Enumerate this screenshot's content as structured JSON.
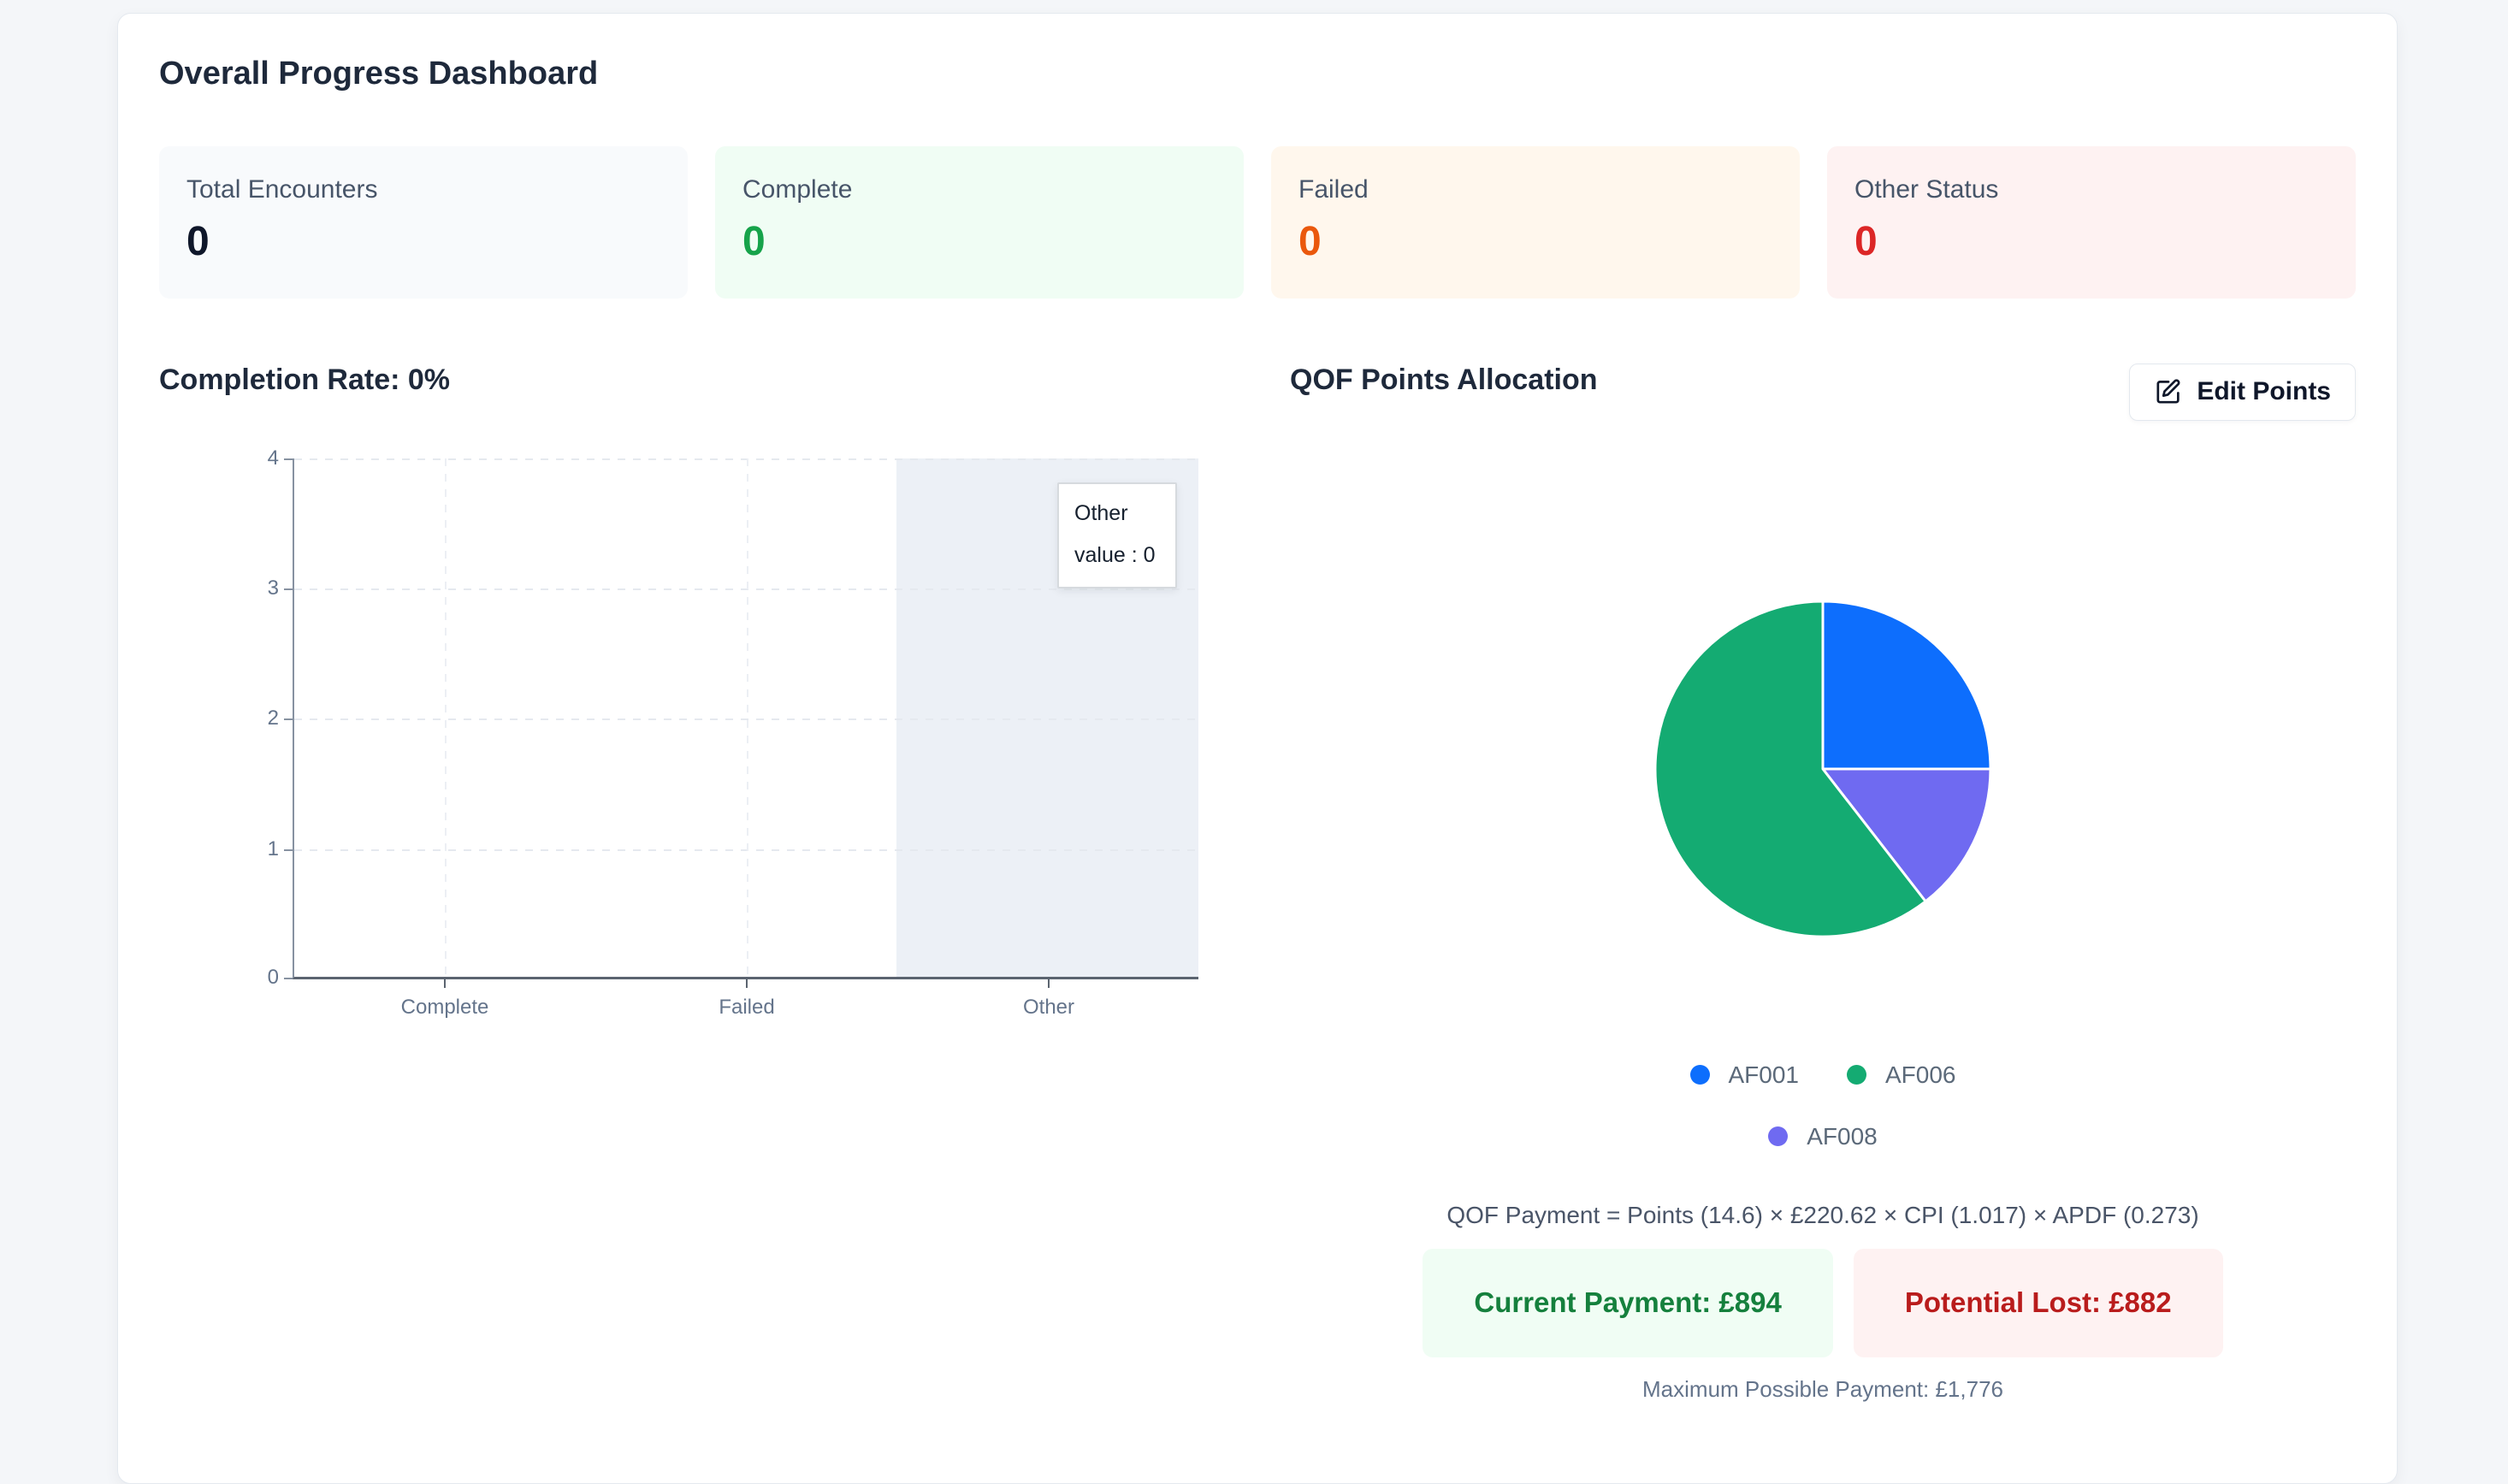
{
  "page": {
    "title": "Overall Progress Dashboard"
  },
  "colors": {
    "page_bg": "#f4f6f9",
    "complete_green": "#16a34a",
    "failed_orange": "#ea580c",
    "other_red": "#dc2626",
    "pie_blue": "#0d6efd",
    "pie_green": "#14ab72",
    "pie_purple": "#6f6af1",
    "payment_green_text": "#15803d",
    "payment_red_text": "#b91c1c"
  },
  "stats": [
    {
      "label": "Total Encounters",
      "value": "0"
    },
    {
      "label": "Complete",
      "value": "0"
    },
    {
      "label": "Failed",
      "value": "0"
    },
    {
      "label": "Other Status",
      "value": "0"
    }
  ],
  "qof": {
    "edit_button": "Edit Points",
    "edit_button_icon": "pencil-square",
    "formula": "QOF Payment = Points (14.6) × £220.62 × CPI (1.017) × APDF (0.273)",
    "current_payment": "Current Payment: £894",
    "potential_lost": "Potential Lost: £882",
    "max_payment": "Maximum Possible Payment: £1,776"
  },
  "chart_data": [
    {
      "type": "bar",
      "title": "Completion Rate: 0%",
      "categories": [
        "Complete",
        "Failed",
        "Other"
      ],
      "values": [
        0,
        0,
        0
      ],
      "xlabel": "",
      "ylabel": "",
      "ylim": [
        0,
        4
      ],
      "y_ticks": [
        0,
        1,
        2,
        3,
        4
      ],
      "grid": true,
      "highlighted_category": "Other",
      "tooltip": {
        "header": "Other",
        "body": "value : 0"
      }
    },
    {
      "type": "pie",
      "title": "QOF Points Allocation",
      "slices_draw_order": [
        {
          "label": "AF001",
          "pct": 25.0,
          "color": "#0d6efd"
        },
        {
          "label": "AF008",
          "pct": 14.5,
          "color": "#6f6af1"
        },
        {
          "label": "AF006",
          "pct": 60.5,
          "color": "#14ab72"
        }
      ],
      "legend": [
        {
          "label": "AF001",
          "color": "#0d6efd"
        },
        {
          "label": "AF006",
          "color": "#14ab72"
        },
        {
          "label": "AF008",
          "color": "#6f6af1"
        }
      ],
      "legend_position": "bottom"
    }
  ]
}
